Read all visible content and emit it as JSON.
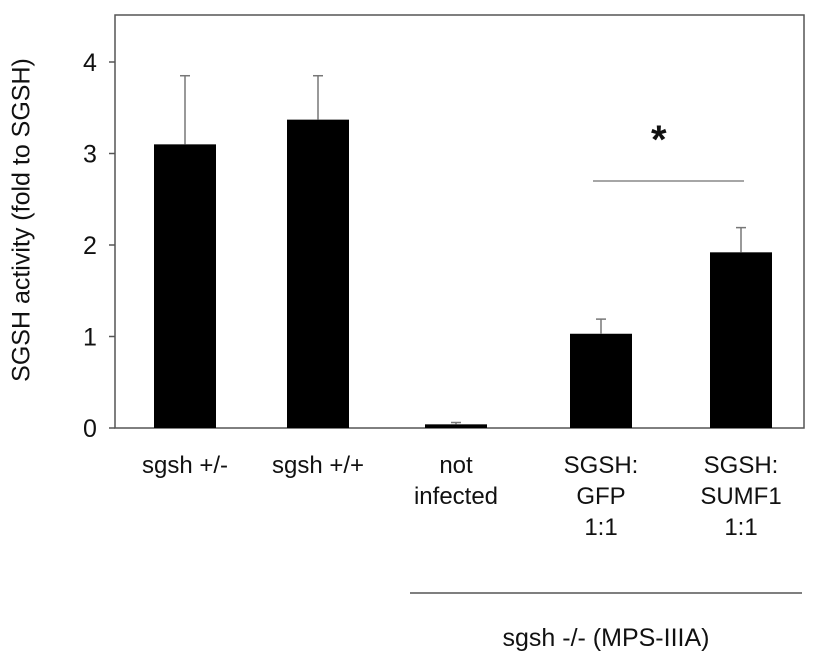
{
  "chart_data": {
    "type": "bar",
    "categories": [
      [
        "sgsh +/-"
      ],
      [
        "sgsh +/+"
      ],
      [
        "not",
        "infected"
      ],
      [
        "SGSH:",
        "GFP",
        "1:1"
      ],
      [
        "SGSH:",
        "SUMF1",
        "1:1"
      ]
    ],
    "values": [
      3.1,
      3.37,
      0.04,
      1.03,
      1.92
    ],
    "error": [
      0.75,
      0.48,
      0.02,
      0.16,
      0.27
    ],
    "xlabel": "",
    "ylabel": "SGSH activity (fold to SGSH)",
    "ylim": [
      0,
      4.5
    ],
    "yticks": [
      "0",
      "1",
      "2",
      "3",
      "4"
    ],
    "group_label": "sgsh -/- (MPS-IIIA)",
    "significance": {
      "label": "*",
      "between": [
        3,
        4
      ]
    },
    "grid": false,
    "colors": {
      "bar": "#000000",
      "axis": "#555555",
      "error": "#777777",
      "bracket": "#888888"
    }
  }
}
